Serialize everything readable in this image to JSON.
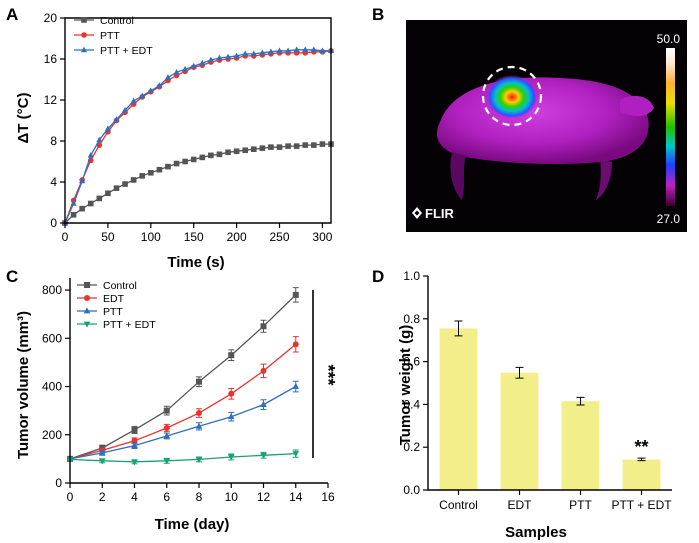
{
  "panels": [
    "A",
    "B",
    "C",
    "D"
  ],
  "chart_data": [
    {
      "id": "A",
      "type": "line",
      "xlabel": "Time (s)",
      "ylabel": "ΔT (°C)",
      "xlim": [
        0,
        310
      ],
      "ylim": [
        0,
        20
      ],
      "xticks": [
        0,
        50,
        100,
        150,
        200,
        250,
        300
      ],
      "yticks": [
        0,
        4,
        8,
        12,
        16,
        20
      ],
      "legend_position": "top-left",
      "series": [
        {
          "name": "Control",
          "color": "#555555",
          "marker": "square",
          "x": [
            0,
            10,
            20,
            30,
            40,
            50,
            60,
            70,
            80,
            90,
            100,
            110,
            120,
            130,
            140,
            150,
            160,
            170,
            180,
            190,
            200,
            210,
            220,
            230,
            240,
            250,
            260,
            270,
            280,
            290,
            300,
            310
          ],
          "values": [
            0,
            0.8,
            1.4,
            1.9,
            2.4,
            2.9,
            3.4,
            3.8,
            4.2,
            4.6,
            4.9,
            5.2,
            5.5,
            5.8,
            6.0,
            6.2,
            6.4,
            6.6,
            6.7,
            6.9,
            7.0,
            7.1,
            7.2,
            7.3,
            7.4,
            7.4,
            7.5,
            7.5,
            7.6,
            7.6,
            7.7,
            7.7
          ]
        },
        {
          "name": "PTT",
          "color": "#e8332e",
          "marker": "circle",
          "x": [
            0,
            10,
            20,
            30,
            40,
            50,
            60,
            70,
            80,
            90,
            100,
            110,
            120,
            130,
            140,
            150,
            160,
            170,
            180,
            190,
            200,
            210,
            220,
            230,
            240,
            250,
            260,
            270,
            280,
            290,
            300,
            310
          ],
          "values": [
            0,
            2.2,
            4.2,
            6.1,
            7.6,
            8.9,
            10.0,
            10.8,
            11.6,
            12.3,
            12.8,
            13.3,
            13.9,
            14.4,
            14.8,
            15.2,
            15.4,
            15.7,
            15.9,
            16.0,
            16.1,
            16.3,
            16.3,
            16.4,
            16.5,
            16.6,
            16.6,
            16.6,
            16.6,
            16.7,
            16.7,
            16.8
          ]
        },
        {
          "name": "PTT + EDT",
          "color": "#2f6fbf",
          "marker": "triangle",
          "x": [
            0,
            10,
            20,
            30,
            40,
            50,
            60,
            70,
            80,
            90,
            100,
            110,
            120,
            130,
            140,
            150,
            160,
            170,
            180,
            190,
            200,
            210,
            220,
            230,
            240,
            250,
            260,
            270,
            280,
            290,
            300,
            310
          ],
          "values": [
            0,
            1.9,
            4.1,
            6.6,
            8.1,
            9.2,
            10.1,
            11.0,
            11.9,
            12.4,
            12.9,
            13.4,
            14.2,
            14.7,
            15.0,
            15.3,
            15.6,
            15.9,
            16.1,
            16.2,
            16.3,
            16.5,
            16.5,
            16.6,
            16.7,
            16.8,
            16.8,
            16.9,
            16.9,
            16.9,
            16.8,
            16.8
          ]
        }
      ]
    },
    {
      "id": "C",
      "type": "line",
      "xlabel": "Time (day)",
      "ylabel": "Tumor volume (mm³)",
      "xlim": [
        0,
        16
      ],
      "ylim": [
        0,
        850
      ],
      "xticks": [
        0,
        2,
        4,
        6,
        8,
        10,
        12,
        14,
        16
      ],
      "yticks": [
        0,
        200,
        400,
        600,
        800
      ],
      "legend_position": "top-left",
      "significance": "***",
      "series": [
        {
          "name": "Control",
          "color": "#555555",
          "marker": "square",
          "x": [
            0,
            2,
            4,
            6,
            8,
            10,
            12,
            14
          ],
          "values": [
            100,
            145,
            220,
            300,
            420,
            530,
            650,
            780
          ],
          "errors": [
            8,
            12,
            15,
            18,
            20,
            22,
            25,
            30
          ]
        },
        {
          "name": "EDT",
          "color": "#e8332e",
          "marker": "circle",
          "x": [
            0,
            2,
            4,
            6,
            8,
            10,
            12,
            14
          ],
          "values": [
            100,
            135,
            175,
            228,
            290,
            370,
            465,
            575
          ],
          "errors": [
            8,
            10,
            12,
            15,
            18,
            22,
            28,
            32
          ]
        },
        {
          "name": "PTT",
          "color": "#2f6fbf",
          "marker": "triangle",
          "x": [
            0,
            2,
            4,
            6,
            8,
            10,
            12,
            14
          ],
          "values": [
            100,
            125,
            155,
            195,
            235,
            275,
            325,
            400
          ],
          "errors": [
            8,
            10,
            12,
            12,
            15,
            18,
            20,
            22
          ]
        },
        {
          "name": "PTT + EDT",
          "color": "#1aa079",
          "marker": "triangle-down",
          "x": [
            0,
            2,
            4,
            6,
            8,
            10,
            12,
            14
          ],
          "values": [
            98,
            92,
            88,
            92,
            98,
            108,
            115,
            122
          ],
          "errors": [
            6,
            8,
            8,
            10,
            10,
            12,
            12,
            15
          ]
        }
      ]
    },
    {
      "id": "D",
      "type": "bar",
      "xlabel": "Samples",
      "ylabel": "Tumor weight (g)",
      "ylim": [
        0,
        1.0
      ],
      "yticks": [
        "0.0",
        "0.2",
        "0.4",
        "0.6",
        "0.8",
        "1.0"
      ],
      "categories": [
        "Control",
        "EDT",
        "PTT",
        "PTT + EDT"
      ],
      "values": [
        0.755,
        0.548,
        0.415,
        0.143
      ],
      "errors": [
        0.035,
        0.025,
        0.018,
        0.006
      ],
      "bar_color": "#f2ef8a",
      "significance": {
        "category": "PTT + EDT",
        "label": "**"
      }
    }
  ],
  "thermal_image": {
    "panel": "B",
    "scale_max": "50.0",
    "scale_min": "27.0",
    "brand": "FLIR"
  }
}
